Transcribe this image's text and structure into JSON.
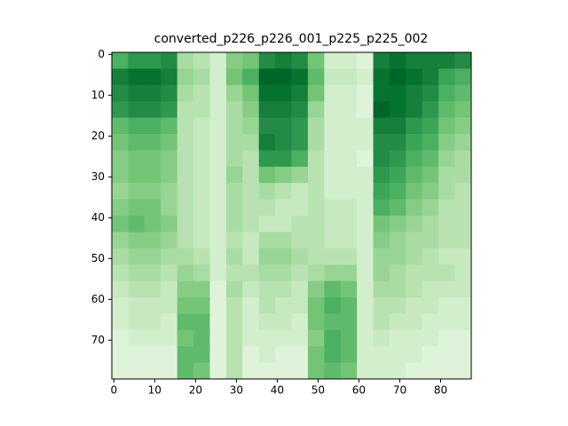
{
  "chart_data": {
    "type": "heatmap",
    "title": "converted_p226_p226_001_p225_p225_002",
    "colormap": "Greens",
    "zlim": [
      0,
      1
    ],
    "xlim": [
      -0.5,
      87.5
    ],
    "ylim": [
      79.5,
      -0.5
    ],
    "xticks": [
      0,
      10,
      20,
      30,
      40,
      50,
      60,
      70,
      80
    ],
    "yticks": [
      0,
      10,
      20,
      30,
      40,
      50,
      60,
      70
    ],
    "z": [
      [
        0.6,
        0.7,
        0.7,
        0.75,
        0.35,
        0.3,
        0.2,
        0.45,
        0.5,
        0.75,
        0.8,
        0.75,
        0.5,
        0.2,
        0.2,
        0.15,
        0.8,
        0.85,
        0.8,
        0.8,
        0.8,
        0.75
      ],
      [
        0.8,
        0.85,
        0.85,
        0.8,
        0.4,
        0.35,
        0.2,
        0.5,
        0.6,
        0.9,
        0.9,
        0.85,
        0.55,
        0.25,
        0.25,
        0.2,
        0.85,
        0.9,
        0.85,
        0.8,
        0.65,
        0.6
      ],
      [
        0.75,
        0.8,
        0.8,
        0.75,
        0.35,
        0.3,
        0.2,
        0.4,
        0.5,
        0.85,
        0.85,
        0.8,
        0.5,
        0.2,
        0.2,
        0.15,
        0.85,
        0.85,
        0.8,
        0.75,
        0.6,
        0.55
      ],
      [
        0.7,
        0.75,
        0.75,
        0.7,
        0.3,
        0.3,
        0.2,
        0.35,
        0.45,
        0.8,
        0.8,
        0.75,
        0.4,
        0.2,
        0.2,
        0.15,
        0.9,
        0.85,
        0.8,
        0.7,
        0.55,
        0.5
      ],
      [
        0.55,
        0.6,
        0.6,
        0.55,
        0.3,
        0.25,
        0.2,
        0.35,
        0.4,
        0.75,
        0.75,
        0.7,
        0.35,
        0.2,
        0.2,
        0.2,
        0.8,
        0.8,
        0.7,
        0.65,
        0.5,
        0.45
      ],
      [
        0.5,
        0.55,
        0.55,
        0.5,
        0.3,
        0.25,
        0.2,
        0.35,
        0.35,
        0.8,
        0.75,
        0.7,
        0.35,
        0.2,
        0.2,
        0.2,
        0.75,
        0.75,
        0.65,
        0.6,
        0.45,
        0.4
      ],
      [
        0.45,
        0.5,
        0.5,
        0.45,
        0.3,
        0.25,
        0.2,
        0.35,
        0.3,
        0.7,
        0.7,
        0.6,
        0.3,
        0.2,
        0.2,
        0.15,
        0.75,
        0.7,
        0.6,
        0.55,
        0.4,
        0.35
      ],
      [
        0.45,
        0.5,
        0.5,
        0.45,
        0.3,
        0.25,
        0.2,
        0.4,
        0.3,
        0.5,
        0.45,
        0.4,
        0.3,
        0.2,
        0.2,
        0.2,
        0.7,
        0.65,
        0.55,
        0.5,
        0.35,
        0.35
      ],
      [
        0.4,
        0.45,
        0.45,
        0.4,
        0.3,
        0.25,
        0.2,
        0.35,
        0.3,
        0.35,
        0.3,
        0.25,
        0.3,
        0.2,
        0.2,
        0.2,
        0.65,
        0.6,
        0.5,
        0.45,
        0.35,
        0.3
      ],
      [
        0.45,
        0.5,
        0.5,
        0.4,
        0.3,
        0.25,
        0.2,
        0.35,
        0.3,
        0.3,
        0.25,
        0.25,
        0.3,
        0.25,
        0.25,
        0.2,
        0.6,
        0.55,
        0.45,
        0.4,
        0.3,
        0.3
      ],
      [
        0.5,
        0.55,
        0.5,
        0.45,
        0.3,
        0.25,
        0.2,
        0.35,
        0.3,
        0.25,
        0.25,
        0.3,
        0.3,
        0.25,
        0.25,
        0.2,
        0.5,
        0.45,
        0.4,
        0.35,
        0.3,
        0.3
      ],
      [
        0.4,
        0.45,
        0.45,
        0.4,
        0.3,
        0.25,
        0.2,
        0.3,
        0.25,
        0.35,
        0.35,
        0.3,
        0.3,
        0.25,
        0.25,
        0.2,
        0.45,
        0.4,
        0.35,
        0.35,
        0.3,
        0.3
      ],
      [
        0.35,
        0.4,
        0.4,
        0.35,
        0.35,
        0.3,
        0.2,
        0.35,
        0.25,
        0.4,
        0.4,
        0.35,
        0.3,
        0.3,
        0.3,
        0.2,
        0.4,
        0.4,
        0.35,
        0.3,
        0.25,
        0.25
      ],
      [
        0.3,
        0.35,
        0.35,
        0.3,
        0.4,
        0.35,
        0.2,
        0.3,
        0.3,
        0.35,
        0.35,
        0.3,
        0.35,
        0.4,
        0.4,
        0.2,
        0.4,
        0.35,
        0.3,
        0.3,
        0.3,
        0.25
      ],
      [
        0.25,
        0.3,
        0.3,
        0.25,
        0.45,
        0.45,
        0.15,
        0.35,
        0.25,
        0.3,
        0.3,
        0.25,
        0.45,
        0.55,
        0.5,
        0.2,
        0.35,
        0.35,
        0.3,
        0.25,
        0.25,
        0.25
      ],
      [
        0.2,
        0.25,
        0.25,
        0.25,
        0.5,
        0.5,
        0.15,
        0.3,
        0.2,
        0.3,
        0.25,
        0.25,
        0.5,
        0.6,
        0.55,
        0.2,
        0.3,
        0.3,
        0.25,
        0.25,
        0.2,
        0.2
      ],
      [
        0.2,
        0.25,
        0.25,
        0.2,
        0.55,
        0.55,
        0.15,
        0.3,
        0.2,
        0.25,
        0.25,
        0.2,
        0.5,
        0.55,
        0.55,
        0.2,
        0.3,
        0.25,
        0.25,
        0.2,
        0.2,
        0.2
      ],
      [
        0.15,
        0.2,
        0.2,
        0.2,
        0.5,
        0.55,
        0.15,
        0.3,
        0.2,
        0.2,
        0.2,
        0.2,
        0.45,
        0.6,
        0.55,
        0.2,
        0.25,
        0.2,
        0.2,
        0.2,
        0.15,
        0.15
      ],
      [
        0.15,
        0.15,
        0.15,
        0.15,
        0.55,
        0.55,
        0.15,
        0.3,
        0.15,
        0.2,
        0.15,
        0.15,
        0.5,
        0.6,
        0.55,
        0.2,
        0.2,
        0.2,
        0.2,
        0.15,
        0.15,
        0.15
      ],
      [
        0.15,
        0.15,
        0.15,
        0.15,
        0.55,
        0.5,
        0.15,
        0.3,
        0.15,
        0.15,
        0.15,
        0.15,
        0.5,
        0.55,
        0.5,
        0.2,
        0.2,
        0.2,
        0.15,
        0.15,
        0.15,
        0.15
      ]
    ]
  }
}
